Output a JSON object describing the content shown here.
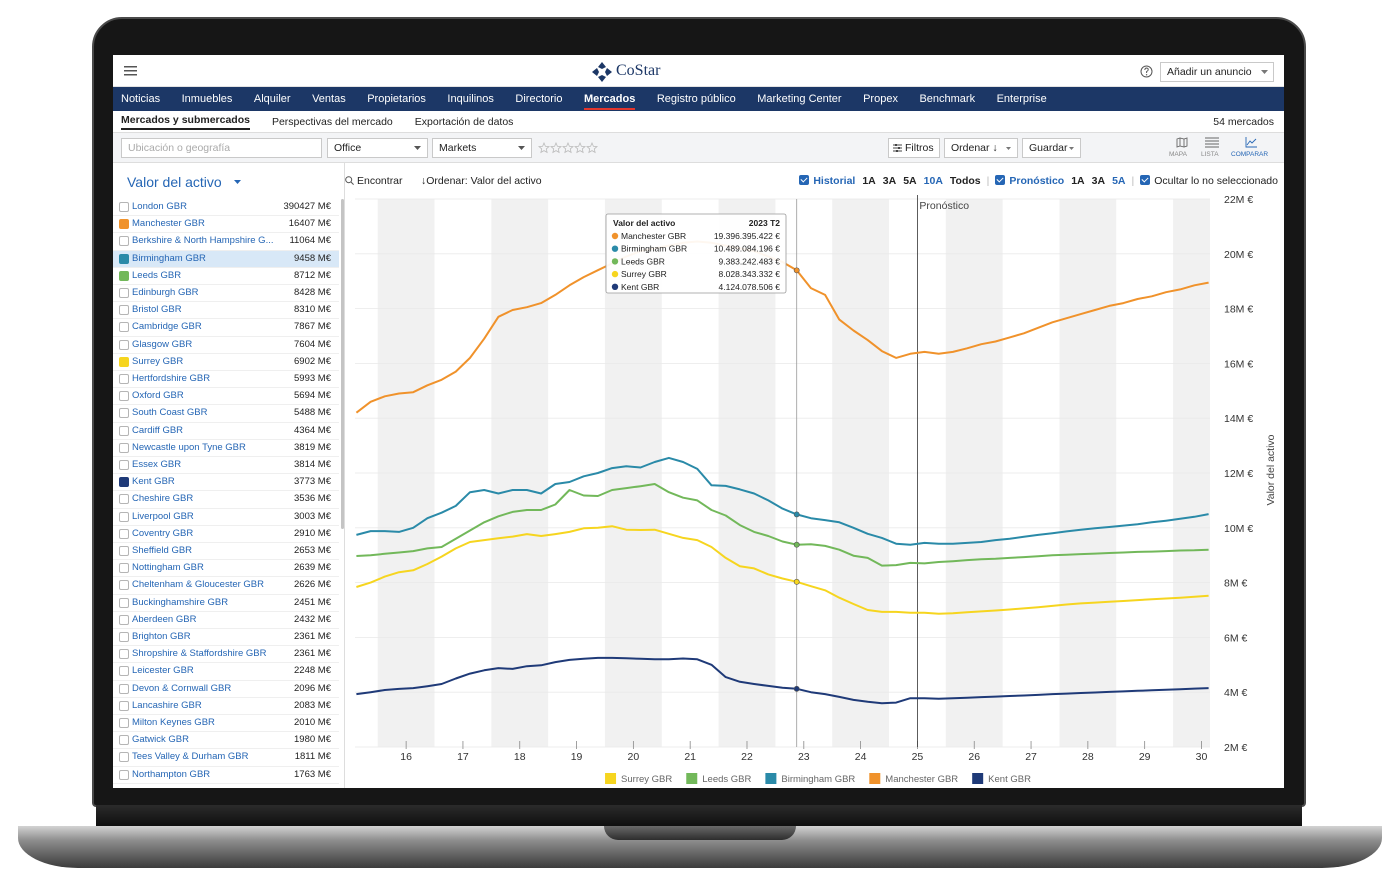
{
  "header": {
    "logo": "CoStar",
    "add_listing": "Añadir un anuncio"
  },
  "nav": [
    "Noticias",
    "Inmuebles",
    "Alquiler",
    "Ventas",
    "Propietarios",
    "Inquilinos",
    "Directorio",
    "Mercados",
    "Registro público",
    "Marketing Center",
    "Propex",
    "Benchmark",
    "Enterprise"
  ],
  "subnav": {
    "tabs": [
      "Mercados y submercados",
      "Perspectivas del mercado",
      "Exportación de datos"
    ],
    "count": "54 mercados"
  },
  "toolbar": {
    "search_placeholder": "Ubicación o geografía",
    "property_type": "Office",
    "geography": "Markets",
    "filters": "Filtros",
    "sort": "Ordenar ↓",
    "save": "Guardar",
    "views": [
      "MAPA",
      "LISTA",
      "COMPARAR"
    ]
  },
  "sidebar": {
    "metric": "Valor del activo",
    "rows": [
      {
        "name": "London GBR",
        "value": "390427 M€"
      },
      {
        "name": "Manchester GBR",
        "value": "16407 M€",
        "color": "#f0922b"
      },
      {
        "name": "Berkshire & North Hampshire G...",
        "value": "11064 M€"
      },
      {
        "name": "Birmingham GBR",
        "value": "9458 M€",
        "color": "#2a8aa8",
        "selected": true
      },
      {
        "name": "Leeds GBR",
        "value": "8712 M€",
        "color": "#72b85a"
      },
      {
        "name": "Edinburgh GBR",
        "value": "8428 M€"
      },
      {
        "name": "Bristol GBR",
        "value": "8310 M€"
      },
      {
        "name": "Cambridge GBR",
        "value": "7867 M€"
      },
      {
        "name": "Glasgow GBR",
        "value": "7604 M€"
      },
      {
        "name": "Surrey GBR",
        "value": "6902 M€",
        "color": "#f6d51f"
      },
      {
        "name": "Hertfordshire GBR",
        "value": "5993 M€"
      },
      {
        "name": "Oxford GBR",
        "value": "5694 M€"
      },
      {
        "name": "South Coast GBR",
        "value": "5488 M€"
      },
      {
        "name": "Cardiff GBR",
        "value": "4364 M€"
      },
      {
        "name": "Newcastle upon Tyne GBR",
        "value": "3819 M€"
      },
      {
        "name": "Essex GBR",
        "value": "3814 M€"
      },
      {
        "name": "Kent GBR",
        "value": "3773 M€",
        "color": "#1f3a78"
      },
      {
        "name": "Cheshire GBR",
        "value": "3536 M€"
      },
      {
        "name": "Liverpool GBR",
        "value": "3003 M€"
      },
      {
        "name": "Coventry GBR",
        "value": "2910 M€"
      },
      {
        "name": "Sheffield GBR",
        "value": "2653 M€"
      },
      {
        "name": "Nottingham GBR",
        "value": "2639 M€"
      },
      {
        "name": "Cheltenham & Gloucester GBR",
        "value": "2626 M€"
      },
      {
        "name": "Buckinghamshire GBR",
        "value": "2451 M€"
      },
      {
        "name": "Aberdeen GBR",
        "value": "2432 M€"
      },
      {
        "name": "Brighton GBR",
        "value": "2361 M€"
      },
      {
        "name": "Shropshire & Staffordshire GBR",
        "value": "2361 M€"
      },
      {
        "name": "Leicester GBR",
        "value": "2248 M€"
      },
      {
        "name": "Devon & Cornwall GBR",
        "value": "2096 M€"
      },
      {
        "name": "Lancashire GBR",
        "value": "2083 M€"
      },
      {
        "name": "Milton Keynes GBR",
        "value": "2010 M€"
      },
      {
        "name": "Gatwick GBR",
        "value": "1980 M€"
      },
      {
        "name": "Tees Valley & Durham GBR",
        "value": "1811 M€"
      },
      {
        "name": "Northampton GBR",
        "value": "1763 M€"
      }
    ]
  },
  "controls": {
    "find": "Encontrar",
    "sort_label": "↓Ordenar:",
    "sort_value": "Valor del activo",
    "history": {
      "label": "Historial",
      "periods": [
        {
          "label": "1A",
          "active": false
        },
        {
          "label": "3A",
          "active": false
        },
        {
          "label": "5A",
          "active": false
        },
        {
          "label": "10A",
          "active": true
        },
        {
          "label": "Todos",
          "active": false
        }
      ]
    },
    "forecast": {
      "label": "Pronóstico",
      "periods": [
        {
          "label": "1A",
          "active": false
        },
        {
          "label": "3A",
          "active": false
        },
        {
          "label": "5A",
          "active": true
        }
      ]
    },
    "hide_unselected": "Ocultar lo no seleccionado"
  },
  "chart_data": {
    "type": "line",
    "y_label": "Valor del activo",
    "grid": true,
    "x": [
      2015.625,
      2015.875,
      2016.125,
      2016.375,
      2016.625,
      2016.875,
      2017.125,
      2017.375,
      2017.625,
      2017.875,
      2018.125,
      2018.375,
      2018.625,
      2018.875,
      2019.125,
      2019.375,
      2019.625,
      2019.875,
      2020.125,
      2020.375,
      2020.625,
      2020.875,
      2021.125,
      2021.375,
      2021.625,
      2021.875,
      2022.125,
      2022.375,
      2022.625,
      2022.875,
      2023.125,
      2023.375,
      2023.625,
      2023.875,
      2024.125,
      2024.375,
      2024.625,
      2024.875,
      2025.125,
      2025.375,
      2025.625,
      2025.875,
      2026.125,
      2026.375,
      2026.625,
      2026.875,
      2027.125,
      2027.375,
      2027.625,
      2027.875,
      2028.125,
      2028.375,
      2028.625,
      2028.875,
      2029.125,
      2029.375,
      2029.625,
      2029.875,
      2030.125,
      2030.375,
      2030.625
    ],
    "xlim": [
      2015.6,
      2030.65
    ],
    "xticks": [
      {
        "value": 2016.5,
        "label": "16"
      },
      {
        "value": 2017.5,
        "label": "17"
      },
      {
        "value": 2018.5,
        "label": "18"
      },
      {
        "value": 2019.5,
        "label": "19"
      },
      {
        "value": 2020.5,
        "label": "20"
      },
      {
        "value": 2021.5,
        "label": "21"
      },
      {
        "value": 2022.5,
        "label": "22"
      },
      {
        "value": 2023.5,
        "label": "23"
      },
      {
        "value": 2024.5,
        "label": "24"
      },
      {
        "value": 2025.5,
        "label": "25"
      },
      {
        "value": 2026.5,
        "label": "26"
      },
      {
        "value": 2027.5,
        "label": "27"
      },
      {
        "value": 2028.5,
        "label": "28"
      },
      {
        "value": 2029.5,
        "label": "29"
      },
      {
        "value": 2030.5,
        "label": "30"
      }
    ],
    "ylim": [
      2,
      22
    ],
    "yticks": [
      {
        "value": 2,
        "label": "2M €"
      },
      {
        "value": 4,
        "label": "4M €"
      },
      {
        "value": 6,
        "label": "6M €"
      },
      {
        "value": 8,
        "label": "8M €"
      },
      {
        "value": 10,
        "label": "10M €"
      },
      {
        "value": 12,
        "label": "12M €"
      },
      {
        "value": 14,
        "label": "14M €"
      },
      {
        "value": 16,
        "label": "16M €"
      },
      {
        "value": 18,
        "label": "18M €"
      },
      {
        "value": 20,
        "label": "20M €"
      },
      {
        "value": 22,
        "label": "22M €"
      }
    ],
    "series": [
      {
        "name": "Surrey GBR",
        "color": "#f6d51f",
        "values": [
          7.84,
          8.0,
          8.22,
          8.38,
          8.45,
          8.68,
          8.95,
          9.25,
          9.48,
          9.55,
          9.62,
          9.68,
          9.77,
          9.7,
          9.77,
          9.85,
          9.98,
          10.0,
          10.06,
          9.93,
          9.92,
          9.93,
          9.78,
          9.63,
          9.55,
          9.3,
          8.9,
          8.6,
          8.52,
          8.3,
          8.15,
          8.028343332,
          7.87,
          7.72,
          7.45,
          7.22,
          7.0,
          6.93,
          6.93,
          6.9,
          6.9,
          6.86,
          6.88,
          6.92,
          6.95,
          6.98,
          7.02,
          7.06,
          7.1,
          7.15,
          7.2,
          7.24,
          7.27,
          7.3,
          7.33,
          7.36,
          7.39,
          7.42,
          7.45,
          7.48,
          7.52
        ]
      },
      {
        "name": "Leeds GBR",
        "color": "#72b85a",
        "values": [
          8.97,
          9.0,
          9.05,
          9.1,
          9.15,
          9.25,
          9.3,
          9.6,
          9.9,
          10.2,
          10.42,
          10.58,
          10.65,
          10.65,
          10.85,
          11.38,
          11.18,
          11.16,
          11.38,
          11.45,
          11.52,
          11.6,
          11.3,
          11.1,
          11.0,
          10.65,
          10.45,
          10.1,
          9.85,
          9.7,
          9.5,
          9.383242483,
          9.4,
          9.34,
          9.2,
          8.98,
          8.9,
          8.62,
          8.64,
          8.72,
          8.7,
          8.75,
          8.78,
          8.82,
          8.85,
          8.87,
          8.9,
          8.93,
          8.96,
          9.0,
          9.02,
          9.04,
          9.06,
          9.08,
          9.1,
          9.12,
          9.13,
          9.15,
          9.17,
          9.18,
          9.2
        ]
      },
      {
        "name": "Birmingham GBR",
        "color": "#2a8aa8",
        "values": [
          9.74,
          9.88,
          9.88,
          9.85,
          10.0,
          10.35,
          10.55,
          10.8,
          11.3,
          11.38,
          11.25,
          11.38,
          11.38,
          11.25,
          11.6,
          11.67,
          11.88,
          12.0,
          12.18,
          12.25,
          12.2,
          12.4,
          12.55,
          12.4,
          12.15,
          11.55,
          11.53,
          11.4,
          11.25,
          11.0,
          10.7,
          10.489084196,
          10.35,
          10.28,
          10.2,
          10.0,
          9.78,
          9.63,
          9.42,
          9.38,
          9.45,
          9.42,
          9.42,
          9.45,
          9.48,
          9.55,
          9.6,
          9.67,
          9.74,
          9.8,
          9.87,
          9.93,
          9.98,
          10.03,
          10.08,
          10.13,
          10.2,
          10.26,
          10.33,
          10.4,
          10.5
        ]
      },
      {
        "name": "Manchester GBR",
        "color": "#f0922b",
        "values": [
          14.2,
          14.6,
          14.8,
          14.9,
          14.95,
          15.2,
          15.4,
          15.7,
          16.2,
          16.9,
          17.7,
          17.95,
          18.05,
          18.2,
          18.5,
          18.85,
          19.15,
          19.4,
          19.65,
          19.9,
          20.1,
          20.2,
          20.3,
          20.4,
          20.45,
          20.4,
          20.3,
          20.2,
          20.1,
          19.9,
          19.7,
          19.396395422,
          18.75,
          18.5,
          17.6,
          17.2,
          16.85,
          16.45,
          16.2,
          16.35,
          16.42,
          16.35,
          16.42,
          16.55,
          16.7,
          16.8,
          16.95,
          17.1,
          17.3,
          17.5,
          17.65,
          17.8,
          17.95,
          18.1,
          18.2,
          18.35,
          18.45,
          18.6,
          18.7,
          18.85,
          18.95
        ]
      },
      {
        "name": "Kent GBR",
        "color": "#1f3a78",
        "values": [
          3.93,
          4.0,
          4.08,
          4.12,
          4.15,
          4.22,
          4.3,
          4.5,
          4.68,
          4.8,
          4.88,
          4.85,
          4.95,
          4.98,
          5.1,
          5.18,
          5.22,
          5.25,
          5.25,
          5.24,
          5.22,
          5.2,
          5.2,
          5.23,
          5.2,
          5.0,
          4.55,
          4.38,
          4.3,
          4.23,
          4.16,
          4.124078506,
          4.0,
          3.93,
          3.83,
          3.72,
          3.65,
          3.6,
          3.62,
          3.78,
          3.78,
          3.76,
          3.78,
          3.8,
          3.82,
          3.84,
          3.86,
          3.88,
          3.9,
          3.93,
          3.95,
          3.97,
          3.99,
          4.01,
          4.03,
          4.05,
          4.07,
          4.09,
          4.11,
          4.13,
          4.15
        ]
      }
    ],
    "forecast": {
      "x": 2025.5,
      "label": "Pronóstico"
    },
    "crosshair_x": 2023.375,
    "tooltip": {
      "title": "Valor del activo",
      "period": "2023 T2",
      "rows": [
        {
          "name": "Manchester GBR",
          "value": "19.396.395.422 €",
          "color": "#f0922b"
        },
        {
          "name": "Birmingham GBR",
          "value": "10.489.084.196 €",
          "color": "#2a8aa8"
        },
        {
          "name": "Leeds GBR",
          "value": "9.383.242.483 €",
          "color": "#72b85a"
        },
        {
          "name": "Surrey GBR",
          "value": "8.028.343.332 €",
          "color": "#f6d51f"
        },
        {
          "name": "Kent GBR",
          "value": "4.124.078.506 €",
          "color": "#1f3a78"
        }
      ]
    }
  }
}
